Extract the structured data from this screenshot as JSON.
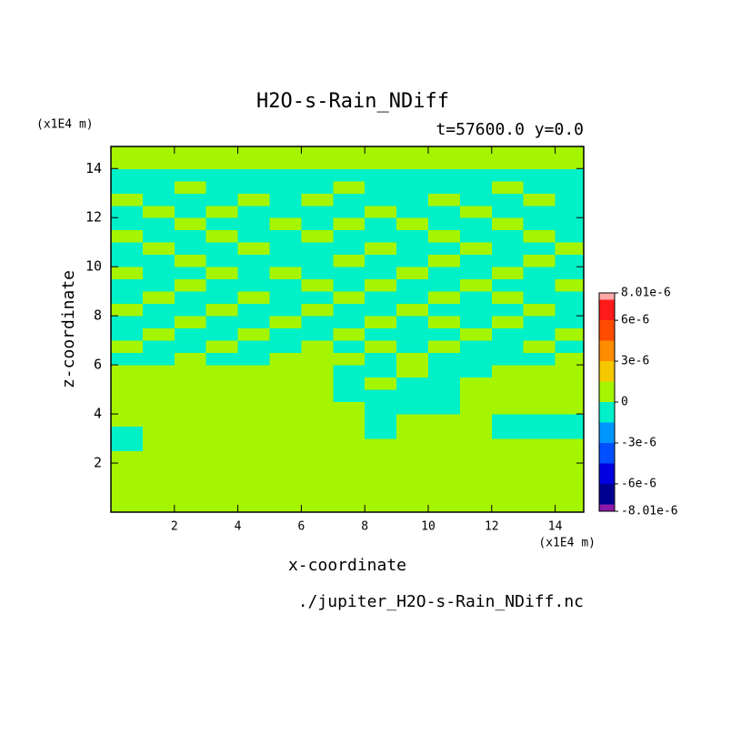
{
  "chart_data": {
    "type": "contour",
    "title": "H2O-s-Rain_NDiff",
    "subtitle": "t=57600.0 y=0.0",
    "x_label": "x-coordinate",
    "y_label": "z-coordinate",
    "x_unit": "(x1E4 m)",
    "y_unit": "(x1E4 m)",
    "footer": "./jupiter_H2O-s-Rain_NDiff.nc",
    "xlim": [
      0,
      14.9
    ],
    "ylim": [
      0,
      14.9
    ],
    "xticks": [
      2,
      4,
      6,
      8,
      10,
      12,
      14
    ],
    "yticks": [
      2,
      4,
      6,
      8,
      10,
      12,
      14
    ],
    "xbins": [
      0,
      1,
      2,
      3,
      4,
      5,
      6,
      7,
      8,
      9,
      10,
      11,
      12,
      13,
      14,
      14.9
    ],
    "ybins": [
      0,
      0.5,
      1,
      1.5,
      2,
      2.5,
      3,
      3.5,
      4,
      4.5,
      5,
      5.5,
      6,
      6.5,
      7,
      7.5,
      8,
      8.5,
      9,
      9.5,
      10,
      10.5,
      11,
      11.5,
      12,
      12.5,
      13,
      13.5,
      14,
      14.5,
      14.9
    ],
    "values": [
      [
        0,
        0,
        0,
        0,
        0,
        0,
        0,
        0,
        0,
        0,
        0,
        0,
        0,
        0,
        0
      ],
      [
        0,
        0,
        0,
        0,
        0,
        0,
        0,
        0,
        0,
        0,
        0,
        0,
        0,
        0,
        0
      ],
      [
        0,
        0,
        0,
        0,
        0,
        0,
        0,
        0,
        0,
        0,
        0,
        0,
        0,
        0,
        0
      ],
      [
        0,
        0,
        0,
        0,
        0,
        0,
        0,
        0,
        0,
        0,
        0,
        0,
        0,
        0,
        0
      ],
      [
        0,
        0,
        0,
        0,
        0,
        0,
        0,
        0,
        0,
        0,
        0,
        0,
        0,
        0,
        0
      ],
      [
        -1e-06,
        0,
        0,
        0,
        0,
        0,
        0,
        0,
        0,
        0,
        0,
        0,
        0,
        0,
        0
      ],
      [
        -1e-06,
        0,
        0,
        0,
        0,
        0,
        0,
        0,
        -1e-06,
        0,
        0,
        0,
        -1e-06,
        -1e-06,
        -1e-06
      ],
      [
        0,
        0,
        0,
        0,
        0,
        0,
        0,
        0,
        -1e-06,
        0,
        0,
        0,
        -1e-06,
        -1e-06,
        -1e-06
      ],
      [
        0,
        0,
        0,
        0,
        0,
        0,
        0,
        0,
        -1e-06,
        -1e-06,
        -1e-06,
        0,
        0,
        0,
        0
      ],
      [
        0,
        0,
        0,
        0,
        0,
        0,
        0,
        -1e-06,
        -1e-06,
        -1e-06,
        -1e-06,
        0,
        0,
        0,
        0
      ],
      [
        0,
        0,
        0,
        0,
        0,
        0,
        0,
        -1e-06,
        0,
        -1e-06,
        -1e-06,
        0,
        0,
        0,
        0
      ],
      [
        0,
        0,
        0,
        0,
        0,
        0,
        0,
        -1e-06,
        -1e-06,
        0,
        -1e-06,
        -1e-06,
        0,
        0,
        0
      ],
      [
        -1e-06,
        -1e-06,
        0,
        -1e-06,
        -1e-06,
        0,
        0,
        0,
        -1e-06,
        0,
        -1e-06,
        -1e-06,
        -1e-06,
        -1e-06,
        0
      ],
      [
        0,
        -1e-06,
        -1e-06,
        0,
        -1e-06,
        -1e-06,
        0,
        -1e-06,
        0,
        -1e-06,
        0,
        -1e-06,
        -1e-06,
        0,
        -1e-06
      ],
      [
        -1e-06,
        0,
        -1e-06,
        -1e-06,
        0,
        -1e-06,
        -1e-06,
        0,
        -1e-06,
        -1e-06,
        -1e-06,
        0,
        -1e-06,
        -1e-06,
        0
      ],
      [
        -1e-06,
        -1e-06,
        0,
        -1e-06,
        -1e-06,
        0,
        -1e-06,
        -1e-06,
        0,
        -1e-06,
        0,
        -1e-06,
        0,
        -1e-06,
        -1e-06
      ],
      [
        0,
        -1e-06,
        -1e-06,
        0,
        -1e-06,
        -1e-06,
        0,
        -1e-06,
        -1e-06,
        0,
        -1e-06,
        -1e-06,
        -1e-06,
        0,
        -1e-06
      ],
      [
        -1e-06,
        0,
        -1e-06,
        -1e-06,
        0,
        -1e-06,
        -1e-06,
        0,
        -1e-06,
        -1e-06,
        0,
        -1e-06,
        0,
        -1e-06,
        -1e-06
      ],
      [
        -1e-06,
        -1e-06,
        0,
        -1e-06,
        -1e-06,
        -1e-06,
        0,
        -1e-06,
        0,
        -1e-06,
        -1e-06,
        0,
        -1e-06,
        -1e-06,
        0
      ],
      [
        0,
        -1e-06,
        -1e-06,
        0,
        -1e-06,
        0,
        -1e-06,
        -1e-06,
        -1e-06,
        0,
        -1e-06,
        -1e-06,
        0,
        -1e-06,
        -1e-06
      ],
      [
        -1e-06,
        -1e-06,
        0,
        -1e-06,
        -1e-06,
        -1e-06,
        -1e-06,
        0,
        -1e-06,
        -1e-06,
        0,
        -1e-06,
        -1e-06,
        0,
        -1e-06
      ],
      [
        -1e-06,
        0,
        -1e-06,
        -1e-06,
        0,
        -1e-06,
        -1e-06,
        -1e-06,
        0,
        -1e-06,
        -1e-06,
        0,
        -1e-06,
        -1e-06,
        0
      ],
      [
        0,
        -1e-06,
        -1e-06,
        0,
        -1e-06,
        -1e-06,
        0,
        -1e-06,
        -1e-06,
        -1e-06,
        0,
        -1e-06,
        -1e-06,
        0,
        -1e-06
      ],
      [
        -1e-06,
        -1e-06,
        0,
        -1e-06,
        -1e-06,
        0,
        -1e-06,
        0,
        -1e-06,
        0,
        -1e-06,
        -1e-06,
        0,
        -1e-06,
        -1e-06
      ],
      [
        -1e-06,
        0,
        -1e-06,
        0,
        -1e-06,
        -1e-06,
        -1e-06,
        -1e-06,
        0,
        -1e-06,
        -1e-06,
        0,
        -1e-06,
        -1e-06,
        -1e-06
      ],
      [
        0,
        -1e-06,
        -1e-06,
        -1e-06,
        0,
        -1e-06,
        0,
        -1e-06,
        -1e-06,
        -1e-06,
        0,
        -1e-06,
        -1e-06,
        0,
        -1e-06
      ],
      [
        -1e-06,
        -1e-06,
        0,
        -1e-06,
        -1e-06,
        -1e-06,
        -1e-06,
        0,
        -1e-06,
        -1e-06,
        -1e-06,
        -1e-06,
        0,
        -1e-06,
        -1e-06
      ],
      [
        -1e-06,
        -1e-06,
        -1e-06,
        -1e-06,
        -1e-06,
        -1e-06,
        -1e-06,
        -1e-06,
        -1e-06,
        -1e-06,
        -1e-06,
        -1e-06,
        -1e-06,
        -1e-06,
        -1e-06
      ],
      [
        0,
        0,
        0,
        0,
        0,
        0,
        0,
        0,
        0,
        0,
        0,
        0,
        0,
        0,
        0
      ],
      [
        0,
        0,
        0,
        0,
        0,
        0,
        0,
        0,
        0,
        0,
        0,
        0,
        0,
        0,
        0
      ]
    ],
    "colorbar": {
      "levels": [
        -8.01e-06,
        -7.5e-06,
        -6e-06,
        -4.5e-06,
        -3e-06,
        -1.5e-06,
        0,
        1.5e-06,
        3e-06,
        4.5e-06,
        6e-06,
        7.5e-06,
        8.01e-06
      ],
      "colors": [
        "#8c1aa8",
        "#000090",
        "#0000e0",
        "#0050ff",
        "#0096ff",
        "#00f0c8",
        "#a6f500",
        "#f5c800",
        "#ff8c00",
        "#ff4b00",
        "#ff1a1a",
        "#ffa8a8"
      ],
      "ticks": [
        {
          "value": -8.01e-06,
          "label": "-8.01e-6"
        },
        {
          "value": -6e-06,
          "label": "-6e-6"
        },
        {
          "value": -3e-06,
          "label": "-3e-6"
        },
        0,
        {
          "value": 3e-06,
          "label": "3e-6"
        },
        {
          "value": 6e-06,
          "label": "6e-6"
        },
        {
          "value": 8.01e-06,
          "label": "8.01e-6"
        }
      ]
    }
  }
}
